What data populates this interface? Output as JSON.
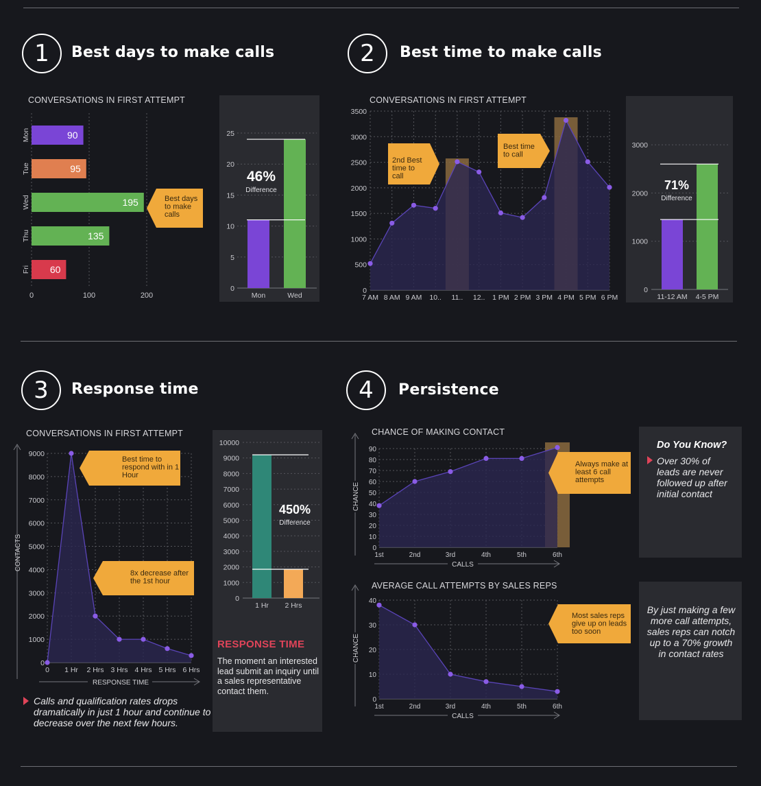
{
  "sections": [
    {
      "number": "1",
      "title": "Best days to make calls"
    },
    {
      "number": "2",
      "title": "Best time to make calls"
    },
    {
      "number": "3",
      "title": "Response time"
    },
    {
      "number": "4",
      "title": "Persistence"
    }
  ],
  "colors": {
    "purple": "#7a45d6",
    "orange": "#e07f50",
    "green": "#63b254",
    "red": "#d83a4c",
    "callout": "#f0a93b",
    "teal": "#2f8777",
    "light_orange": "#f3a957",
    "area": "#2b2750",
    "line": "#5a44b8"
  },
  "notes": {
    "response_title": "RESPONSE TIME",
    "response_body": "The moment an interested lead submit an inquiry until a sales representative contact them.",
    "calls_note": "Calls and qualification rates drops dramatically in just 1 hour and continue to decrease over the next few hours.",
    "know_title": "Do You Know?",
    "know_body": "Over 30% of leads are never followed up after initial contact",
    "growth_body": "By just making a few more call attempts, sales reps can notch up to a 70% growth in contact rates"
  },
  "chart_data": [
    {
      "id": "days",
      "type": "bar",
      "orientation": "horizontal",
      "title": "CONVERSATIONS IN FIRST ATTEMPT",
      "categories": [
        "Mon",
        "Tue",
        "Wed",
        "Thu",
        "Fri"
      ],
      "values": [
        90,
        95,
        195,
        135,
        60
      ],
      "xlim": [
        0,
        200
      ],
      "xticks": [
        "0",
        "100",
        "200"
      ],
      "callout": "Best days to make calls"
    },
    {
      "id": "days_diff",
      "type": "bar",
      "categories": [
        "Mon",
        "Wed"
      ],
      "values": [
        11,
        24
      ],
      "ylim": [
        0,
        25
      ],
      "yticks": [
        "0",
        "5",
        "10",
        "15",
        "20",
        "25"
      ],
      "big_label": "46%",
      "sub_label": "Difference"
    },
    {
      "id": "time",
      "type": "area",
      "title": "CONVERSATIONS IN FIRST ATTEMPT",
      "categories": [
        "7 AM",
        "8 AM",
        "9 AM",
        "10..",
        "11..",
        "12..",
        "1 PM",
        "2 PM",
        "3 PM",
        "4 PM",
        "5 PM",
        "6 PM"
      ],
      "values": [
        520,
        1310,
        1660,
        1600,
        2510,
        2310,
        1510,
        1420,
        1810,
        3320,
        2510,
        2010
      ],
      "ylim": [
        0,
        3500
      ],
      "yticks": [
        "0",
        "500",
        "1000",
        "1500",
        "2000",
        "2500",
        "3000",
        "3500"
      ],
      "callouts": [
        "2nd Best time to call",
        "Best time to call"
      ]
    },
    {
      "id": "time_diff",
      "type": "bar",
      "categories": [
        "11-12 AM",
        "4-5 PM"
      ],
      "values": [
        1450,
        2600
      ],
      "ylim": [
        0,
        3200
      ],
      "yticks": [
        "0",
        "1000",
        "2000",
        "3000"
      ],
      "big_label": "71%",
      "sub_label": "Difference"
    },
    {
      "id": "response",
      "type": "area",
      "title": "CONVERSATIONS IN FIRST ATTEMPT",
      "categories": [
        "0",
        "1 Hr",
        "2 Hrs",
        "3 Hrs",
        "4 Hrs",
        "5 Hrs",
        "6 Hrs"
      ],
      "values": [
        0,
        9000,
        2000,
        1000,
        1000,
        600,
        300
      ],
      "ylim": [
        0,
        9000
      ],
      "yticks": [
        "0",
        "1000",
        "2000",
        "3000",
        "4000",
        "5000",
        "6000",
        "7000",
        "8000",
        "9000"
      ],
      "ylabel": "CONTACTS",
      "xlabel": "RESPONSE TIME",
      "callouts": [
        "Best time to respond with in 1 Hour",
        "8x decrease after the 1st hour"
      ]
    },
    {
      "id": "response_diff",
      "type": "bar",
      "categories": [
        "1 Hr",
        "2 Hrs"
      ],
      "values": [
        9200,
        1850
      ],
      "ylim": [
        0,
        10000
      ],
      "yticks": [
        "0",
        "1000",
        "2000",
        "3000",
        "4000",
        "5000",
        "6000",
        "7000",
        "8000",
        "9000",
        "10000"
      ],
      "big_label": "450%",
      "sub_label": "Difference"
    },
    {
      "id": "contact",
      "type": "area",
      "title": "CHANCE OF MAKING CONTACT",
      "categories": [
        "1st",
        "2nd",
        "3rd",
        "4th",
        "5th",
        "6th"
      ],
      "values": [
        38,
        60,
        69,
        81,
        81,
        91
      ],
      "ylim": [
        0,
        90
      ],
      "yticks": [
        "0",
        "10",
        "20",
        "30",
        "40",
        "50",
        "60",
        "70",
        "80",
        "90"
      ],
      "ylabel": "CHANCE",
      "xlabel": "CALLS",
      "callout": "Always make at least 6 call attempts"
    },
    {
      "id": "attempts",
      "type": "area",
      "title": "AVERAGE CALL ATTEMPTS BY SALES REPS",
      "categories": [
        "1st",
        "2nd",
        "3rd",
        "4th",
        "5th",
        "6th"
      ],
      "values": [
        38,
        30,
        10,
        7,
        5,
        3
      ],
      "ylim": [
        0,
        40
      ],
      "yticks": [
        "0",
        "10",
        "20",
        "30",
        "40"
      ],
      "ylabel": "CHANCE",
      "xlabel": "CALLS",
      "callout": "Most sales reps give up on leads too soon"
    }
  ]
}
